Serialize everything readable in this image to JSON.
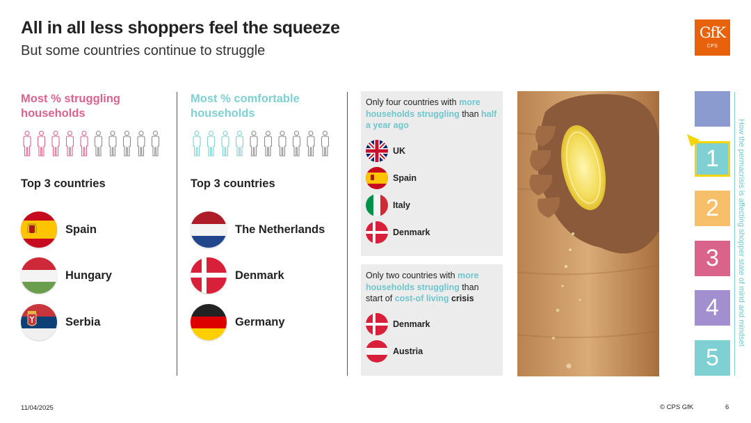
{
  "header": {
    "title": "All in all less shoppers feel the squeeze",
    "subtitle": "But some countries continue to struggle"
  },
  "logo": {
    "text": "GfK",
    "sub": "CPS",
    "color": "#e8620c"
  },
  "struggling": {
    "heading_line1": "Most % struggling",
    "heading_line2": "households",
    "people_total": 10,
    "people_highlighted": 5,
    "highlight_color": "#d9638b",
    "top3_label": "Top 3 countries",
    "countries": [
      {
        "name": "Spain",
        "flag": "spain-flag-icon"
      },
      {
        "name": "Hungary",
        "flag": "hungary-flag-icon"
      },
      {
        "name": "Serbia",
        "flag": "serbia-flag-icon"
      }
    ]
  },
  "comfortable": {
    "heading_line1": "Most % comfortable",
    "heading_line2": "households",
    "people_total": 10,
    "people_highlighted": 4,
    "highlight_color": "#7fd0d2",
    "top3_label": "Top 3 countries",
    "countries": [
      {
        "name": "The Netherlands",
        "flag": "netherlands-flag-icon"
      },
      {
        "name": "Denmark",
        "flag": "denmark-flag-icon"
      },
      {
        "name": "Germany",
        "flag": "germany-flag-icon"
      }
    ]
  },
  "box1": {
    "t1": "Only four countries with ",
    "h1": "more households struggling",
    "t2": " than ",
    "h2": "half a year ago",
    "countries": [
      "UK",
      "Spain",
      "Italy",
      "Denmark"
    ]
  },
  "box2": {
    "t1": "Only two countries with ",
    "h1": "more households struggling",
    "t2": " than start of ",
    "h2": "cost-of living",
    "t3": " crisis",
    "countries": [
      "Denmark",
      "Austria"
    ]
  },
  "nav": {
    "items": [
      {
        "label": "",
        "color": "#8b9bd0"
      },
      {
        "label": "1",
        "color": "#7fd0d2",
        "active": true
      },
      {
        "label": "2",
        "color": "#f8bf6a"
      },
      {
        "label": "3",
        "color": "#d9638b"
      },
      {
        "label": "4",
        "color": "#a18fcf"
      },
      {
        "label": "5",
        "color": "#7fd0d2"
      }
    ],
    "vertical_text": "How the permacrisis is affecting shopper state of mind and mindset"
  },
  "footer": {
    "date": "11/04/2025",
    "copyright": "© CPS GfK",
    "page": "6"
  },
  "colors": {
    "pink": "#d9638b",
    "teal": "#7fd0d2",
    "teal_text": "#6fc6cd",
    "box_bg": "#ececec",
    "pointer": "#f5d400"
  }
}
